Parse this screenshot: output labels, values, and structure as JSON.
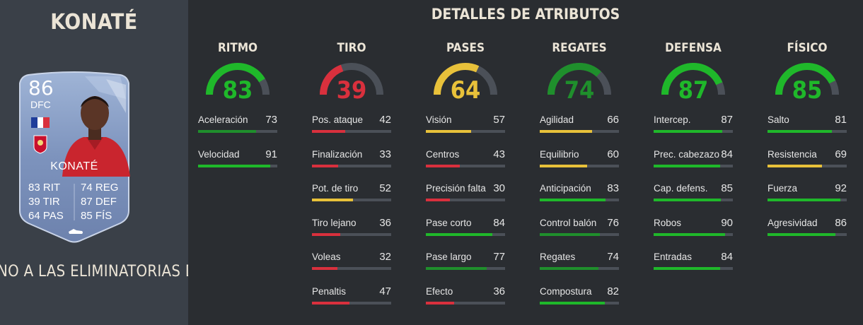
{
  "player": {
    "title": "KONATÉ",
    "card": {
      "rating": "86",
      "position": "DFC",
      "name": "KONATÉ",
      "stats": [
        {
          "value": "83",
          "label": "RIT"
        },
        {
          "value": "74",
          "label": "REG"
        },
        {
          "value": "39",
          "label": "TIR"
        },
        {
          "value": "87",
          "label": "DEF"
        },
        {
          "value": "64",
          "label": "PAS"
        },
        {
          "value": "85",
          "label": "FÍS"
        }
      ]
    },
    "banner": "NO A LAS ELIMINATORIAS DE"
  },
  "section_title": "DETALLES DE ATRIBUTOS",
  "colors": {
    "green": "#1fb82a",
    "dark_green": "#1f8f2c",
    "yellow": "#e8c13a",
    "red": "#d9303d",
    "track": "#4b5058"
  },
  "categories": [
    {
      "name": "RITMO",
      "value": 83,
      "color": "#1fb82a",
      "attributes": [
        {
          "name": "Aceleración",
          "value": 73,
          "color": "#1f8f2c"
        },
        {
          "name": "Velocidad",
          "value": 91,
          "color": "#1fb82a"
        }
      ]
    },
    {
      "name": "TIRO",
      "value": 39,
      "color": "#d9303d",
      "attributes": [
        {
          "name": "Pos. ataque",
          "value": 42,
          "color": "#d9303d"
        },
        {
          "name": "Finalización",
          "value": 33,
          "color": "#d9303d"
        },
        {
          "name": "Pot. de tiro",
          "value": 52,
          "color": "#e8c13a"
        },
        {
          "name": "Tiro lejano",
          "value": 36,
          "color": "#d9303d"
        },
        {
          "name": "Voleas",
          "value": 32,
          "color": "#d9303d"
        },
        {
          "name": "Penaltis",
          "value": 47,
          "color": "#d9303d"
        }
      ]
    },
    {
      "name": "PASES",
      "value": 64,
      "color": "#e8c13a",
      "attributes": [
        {
          "name": "Visión",
          "value": 57,
          "color": "#e8c13a"
        },
        {
          "name": "Centros",
          "value": 43,
          "color": "#d9303d"
        },
        {
          "name": "Precisión falta",
          "value": 30,
          "color": "#d9303d"
        },
        {
          "name": "Pase corto",
          "value": 84,
          "color": "#1fb82a"
        },
        {
          "name": "Pase largo",
          "value": 77,
          "color": "#1f8f2c"
        },
        {
          "name": "Efecto",
          "value": 36,
          "color": "#d9303d"
        }
      ]
    },
    {
      "name": "REGATES",
      "value": 74,
      "color": "#1f8f2c",
      "attributes": [
        {
          "name": "Agilidad",
          "value": 66,
          "color": "#e8c13a"
        },
        {
          "name": "Equilibrio",
          "value": 60,
          "color": "#e8c13a"
        },
        {
          "name": "Anticipación",
          "value": 83,
          "color": "#1fb82a"
        },
        {
          "name": "Control balón",
          "value": 76,
          "color": "#1f8f2c"
        },
        {
          "name": "Regates",
          "value": 74,
          "color": "#1f8f2c"
        },
        {
          "name": "Compostura",
          "value": 82,
          "color": "#1fb82a"
        }
      ]
    },
    {
      "name": "DEFENSA",
      "value": 87,
      "color": "#1fb82a",
      "attributes": [
        {
          "name": "Intercep.",
          "value": 87,
          "color": "#1fb82a"
        },
        {
          "name": "Prec. cabezazo",
          "value": 84,
          "color": "#1fb82a"
        },
        {
          "name": "Cap. defens.",
          "value": 85,
          "color": "#1fb82a"
        },
        {
          "name": "Robos",
          "value": 90,
          "color": "#1fb82a"
        },
        {
          "name": "Entradas",
          "value": 84,
          "color": "#1fb82a"
        }
      ]
    },
    {
      "name": "FÍSICO",
      "value": 85,
      "color": "#1fb82a",
      "attributes": [
        {
          "name": "Salto",
          "value": 81,
          "color": "#1fb82a"
        },
        {
          "name": "Resistencia",
          "value": 69,
          "color": "#e8c13a"
        },
        {
          "name": "Fuerza",
          "value": 92,
          "color": "#1fb82a"
        },
        {
          "name": "Agresividad",
          "value": 86,
          "color": "#1fb82a"
        }
      ]
    }
  ]
}
